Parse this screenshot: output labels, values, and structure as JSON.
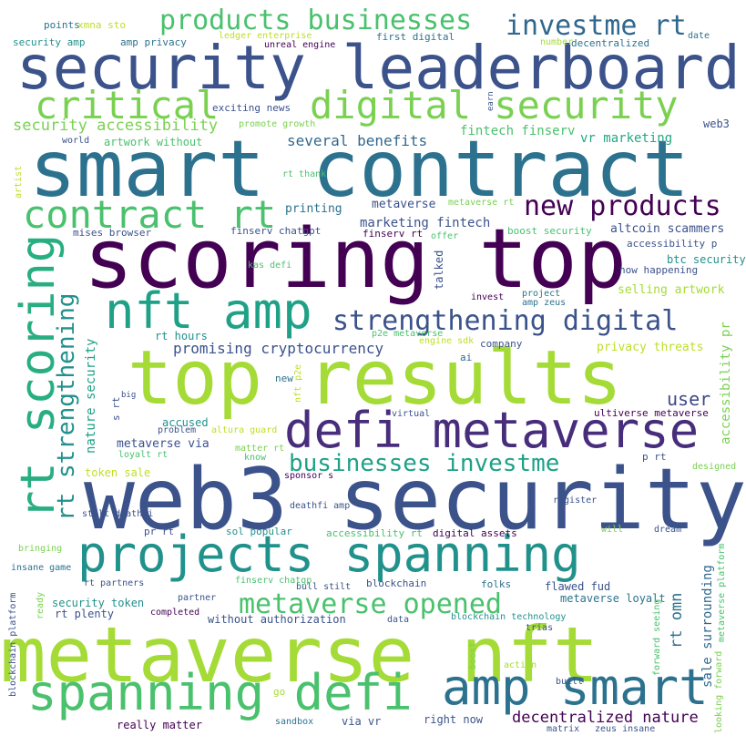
{
  "words": [
    {
      "text": "security leaderboard",
      "color": "#3b528b"
    },
    {
      "text": "smart contract",
      "color": "#2c728e"
    },
    {
      "text": "scoring top",
      "color": "#440154"
    },
    {
      "text": "top results",
      "color": "#a5db36"
    },
    {
      "text": "web3 security",
      "color": "#3b528b"
    },
    {
      "text": "metaverse nft",
      "color": "#a5db36"
    },
    {
      "text": "projects spanning",
      "color": "#21918c"
    },
    {
      "text": "defi metaverse",
      "color": "#472d7b"
    },
    {
      "text": "spanning defi",
      "color": "#4ac16d"
    },
    {
      "text": "amp smart",
      "color": "#2c728e"
    },
    {
      "text": "digital security",
      "color": "#7ad151"
    },
    {
      "text": "critical",
      "color": "#7ad151"
    },
    {
      "text": "contract rt",
      "color": "#4ac16d"
    },
    {
      "text": "nft amp",
      "color": "#1fa187"
    },
    {
      "text": "rt scoring",
      "color": "#28ae80"
    },
    {
      "text": "products businesses",
      "color": "#4ac16d"
    },
    {
      "text": "investme rt",
      "color": "#31688e"
    },
    {
      "text": "new products",
      "color": "#440154"
    },
    {
      "text": "strengthening digital",
      "color": "#3b528b"
    },
    {
      "text": "businesses investme",
      "color": "#1fa187"
    },
    {
      "text": "metaverse opened",
      "color": "#4ac16d"
    },
    {
      "text": "rt strengthening",
      "color": "#21918c"
    },
    {
      "text": "security accessibility",
      "color": "#7ad151"
    },
    {
      "text": "promising cryptocurrency",
      "color": "#3b528b"
    },
    {
      "text": "several benefits",
      "color": "#31688e"
    },
    {
      "text": "decentralized nature",
      "color": "#440154"
    },
    {
      "text": "user",
      "color": "#3e4989"
    },
    {
      "text": "nature security",
      "color": "#1fa187"
    },
    {
      "text": "accessibility pr",
      "color": "#7ad151"
    },
    {
      "text": "rt omn",
      "color": "#2c728e"
    },
    {
      "text": "sale surrounding",
      "color": "#31688e"
    },
    {
      "text": "fintech finserv",
      "color": "#4ac16d"
    },
    {
      "text": "vr marketing",
      "color": "#22a884"
    },
    {
      "text": "marketing fintech",
      "color": "#3b528b"
    },
    {
      "text": "metaverse",
      "color": "#3b528b"
    },
    {
      "text": "printing",
      "color": "#2c728e"
    },
    {
      "text": "altcoin scammers",
      "color": "#3b528b"
    },
    {
      "text": "accessibility p",
      "color": "#3b528b"
    },
    {
      "text": "btc security",
      "color": "#21918c"
    },
    {
      "text": "now happening",
      "color": "#3b528b"
    },
    {
      "text": "selling artwork",
      "color": "#a5db36"
    },
    {
      "text": "privacy threats",
      "color": "#bddf26"
    },
    {
      "text": "rt hours",
      "color": "#21918c"
    },
    {
      "text": "security amp",
      "color": "#21918c"
    },
    {
      "text": "amp privacy",
      "color": "#2c728e"
    },
    {
      "text": "ledger enterprise",
      "color": "#bddf26"
    },
    {
      "text": "unreal engine",
      "color": "#440154"
    },
    {
      "text": "first digital",
      "color": "#2c728e"
    },
    {
      "text": "number",
      "color": "#a5db36"
    },
    {
      "text": "decentralized",
      "color": "#2c728e"
    },
    {
      "text": "date",
      "color": "#2c728e"
    },
    {
      "text": "points",
      "color": "#2c728e"
    },
    {
      "text": "xmna sto",
      "color": "#bddf26"
    },
    {
      "text": "exciting news",
      "color": "#3b528b"
    },
    {
      "text": "promote growth",
      "color": "#7ad151"
    },
    {
      "text": "world",
      "color": "#3b528b"
    },
    {
      "text": "artwork without",
      "color": "#4ac16d"
    },
    {
      "text": "web3",
      "color": "#3b528b"
    },
    {
      "text": "rt thank",
      "color": "#4ac16d"
    },
    {
      "text": "metaverse rt",
      "color": "#7ad151"
    },
    {
      "text": "boost security",
      "color": "#4ac16d"
    },
    {
      "text": "offer",
      "color": "#4ac16d"
    },
    {
      "text": "mises browser",
      "color": "#3b528b"
    },
    {
      "text": "finserv chatgpt",
      "color": "#3b528b"
    },
    {
      "text": "finserv rt",
      "color": "#440154"
    },
    {
      "text": "kas defi",
      "color": "#4ac16d"
    },
    {
      "text": "p2e metaverse",
      "color": "#4ac16d"
    },
    {
      "text": "engine sdk",
      "color": "#bddf26"
    },
    {
      "text": "company",
      "color": "#3b528b"
    },
    {
      "text": "invest",
      "color": "#440154"
    },
    {
      "text": "project",
      "color": "#2c728e"
    },
    {
      "text": "amp zeus",
      "color": "#2c728e"
    },
    {
      "text": "talked",
      "color": "#3b528b"
    },
    {
      "text": "ai",
      "color": "#31688e"
    },
    {
      "text": "new",
      "color": "#2c728e"
    },
    {
      "text": "big",
      "color": "#3b528b"
    },
    {
      "text": "s rt",
      "color": "#3b528b"
    },
    {
      "text": "accused",
      "color": "#21918c"
    },
    {
      "text": "altura guard",
      "color": "#bddf26"
    },
    {
      "text": "problem",
      "color": "#3b528b"
    },
    {
      "text": "virtual",
      "color": "#3b528b"
    },
    {
      "text": "ultiverse metaverse",
      "color": "#440154"
    },
    {
      "text": "metaverse via",
      "color": "#3b528b"
    },
    {
      "text": "loyalt rt",
      "color": "#4ac16d"
    },
    {
      "text": "matter rt",
      "color": "#7ad151"
    },
    {
      "text": "know",
      "color": "#4ac16d"
    },
    {
      "text": "p rt",
      "color": "#3b528b"
    },
    {
      "text": "designed",
      "color": "#7ad151"
    },
    {
      "text": "token sale",
      "color": "#bddf26"
    },
    {
      "text": "sponsor s",
      "color": "#440154"
    },
    {
      "text": "deathfi amp",
      "color": "#3b528b"
    },
    {
      "text": "register",
      "color": "#3b528b"
    },
    {
      "text": "stilt deathfi",
      "color": "#3b528b"
    },
    {
      "text": "pr rt",
      "color": "#3b528b"
    },
    {
      "text": "sol popular",
      "color": "#21918c"
    },
    {
      "text": "accessibility rt",
      "color": "#4ac16d"
    },
    {
      "text": "digital assets",
      "color": "#440154"
    },
    {
      "text": "will",
      "color": "#7ad151"
    },
    {
      "text": "dream",
      "color": "#3b528b"
    },
    {
      "text": "bringing",
      "color": "#7ad151"
    },
    {
      "text": "bull stilt",
      "color": "#3b528b"
    },
    {
      "text": "blockchain",
      "color": "#3b528b"
    },
    {
      "text": "folks",
      "color": "#2c728e"
    },
    {
      "text": "flawed fud",
      "color": "#3b528b"
    },
    {
      "text": "insane game",
      "color": "#2c728e"
    },
    {
      "text": "rt partners",
      "color": "#3b528b"
    },
    {
      "text": "finserv chatgp",
      "color": "#4ac16d"
    },
    {
      "text": "metaverse loyalt",
      "color": "#2c728e"
    },
    {
      "text": "security token",
      "color": "#21918c"
    },
    {
      "text": "partner",
      "color": "#3b528b"
    },
    {
      "text": "rt plenty",
      "color": "#3b528b"
    },
    {
      "text": "completed",
      "color": "#440154"
    },
    {
      "text": "without authorization",
      "color": "#3b528b"
    },
    {
      "text": "data",
      "color": "#3b528b"
    },
    {
      "text": "blockchain technology",
      "color": "#21918c"
    },
    {
      "text": "trias",
      "color": "#3b528b"
    },
    {
      "text": "action",
      "color": "#a5db36"
    },
    {
      "text": "built",
      "color": "#3b528b"
    },
    {
      "text": "go",
      "color": "#a5db36"
    },
    {
      "text": "really matter",
      "color": "#440154"
    },
    {
      "text": "sandbox",
      "color": "#2c728e"
    },
    {
      "text": "via vr",
      "color": "#3b528b"
    },
    {
      "text": "right now",
      "color": "#3b528b"
    },
    {
      "text": "matrix",
      "color": "#3b528b"
    },
    {
      "text": "zeus insane",
      "color": "#3b528b"
    },
    {
      "text": "artist",
      "color": "#bddf26"
    },
    {
      "text": "earn",
      "color": "#3b528b"
    },
    {
      "text": "nft p2e",
      "color": "#bddf26"
    },
    {
      "text": "boost",
      "color": "#7ad151"
    },
    {
      "text": "ready",
      "color": "#7ad151"
    },
    {
      "text": "blockchain platform",
      "color": "#3b528b"
    },
    {
      "text": "forward seeing",
      "color": "#4ac16d"
    },
    {
      "text": "looking forward",
      "color": "#7ad151"
    },
    {
      "text": "metaverse platform",
      "color": "#4ac16d"
    },
    {
      "text": "o",
      "color": "#7ad151"
    }
  ]
}
